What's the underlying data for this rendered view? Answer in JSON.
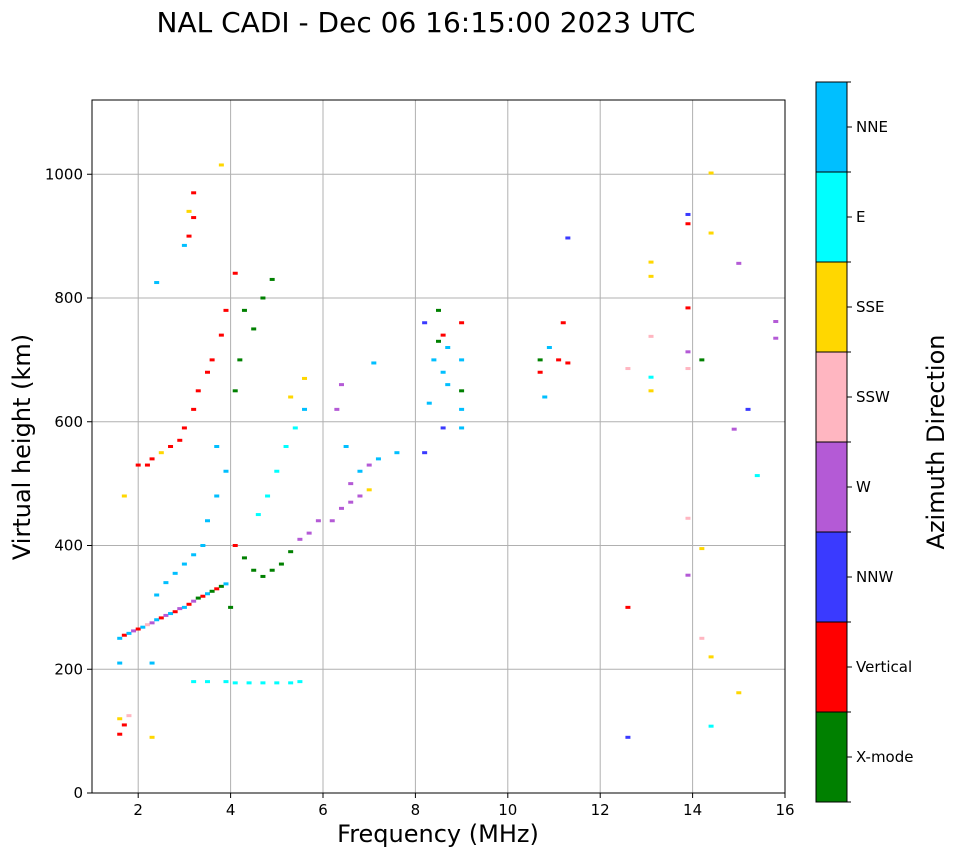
{
  "chart_data": {
    "type": "scatter",
    "title": "NAL CADI - Dec 06 16:15:00 2023 UTC",
    "xlabel": "Frequency (MHz)",
    "ylabel": "Virtual height (km)",
    "xlim": [
      1,
      16
    ],
    "ylim": [
      0,
      1120
    ],
    "xticks": [
      2,
      4,
      6,
      8,
      10,
      12,
      14,
      16
    ],
    "yticks": [
      0,
      200,
      400,
      600,
      800,
      1000
    ],
    "grid": true,
    "colorbar": {
      "label": "Azimuth Direction",
      "categories": [
        {
          "name": "X-mode",
          "color": "#008000"
        },
        {
          "name": "Vertical",
          "color": "#ff0000"
        },
        {
          "name": "NNW",
          "color": "#3a3aff"
        },
        {
          "name": "W",
          "color": "#b45ad6"
        },
        {
          "name": "SSW",
          "color": "#ffb6c1"
        },
        {
          "name": "SSE",
          "color": "#ffd700"
        },
        {
          "name": "E",
          "color": "#00ffff"
        },
        {
          "name": "NNE",
          "color": "#00bfff"
        }
      ]
    },
    "points": [
      [
        1.6,
        250,
        "NNE"
      ],
      [
        1.7,
        255,
        "Vertical"
      ],
      [
        1.8,
        258,
        "NNE"
      ],
      [
        1.9,
        262,
        "W"
      ],
      [
        2.0,
        265,
        "Vertical"
      ],
      [
        2.1,
        268,
        "NNE"
      ],
      [
        2.2,
        272,
        "SSW"
      ],
      [
        2.3,
        275,
        "W"
      ],
      [
        2.4,
        280,
        "NNE"
      ],
      [
        2.5,
        283,
        "Vertical"
      ],
      [
        2.6,
        287,
        "W"
      ],
      [
        2.7,
        290,
        "NNE"
      ],
      [
        2.8,
        293,
        "Vertical"
      ],
      [
        2.9,
        298,
        "W"
      ],
      [
        3.0,
        300,
        "NNE"
      ],
      [
        3.1,
        305,
        "Vertical"
      ],
      [
        3.2,
        310,
        "W"
      ],
      [
        3.3,
        315,
        "X-mode"
      ],
      [
        3.4,
        318,
        "Vertical"
      ],
      [
        3.5,
        322,
        "NNE"
      ],
      [
        3.6,
        326,
        "X-mode"
      ],
      [
        3.7,
        330,
        "Vertical"
      ],
      [
        3.8,
        334,
        "X-mode"
      ],
      [
        3.9,
        338,
        "NNE"
      ],
      [
        4.0,
        300,
        "X-mode"
      ],
      [
        2.4,
        320,
        "NNE"
      ],
      [
        2.6,
        340,
        "NNE"
      ],
      [
        2.8,
        355,
        "NNE"
      ],
      [
        3.0,
        370,
        "NNE"
      ],
      [
        3.2,
        385,
        "NNE"
      ],
      [
        3.4,
        400,
        "NNE"
      ],
      [
        3.5,
        440,
        "NNE"
      ],
      [
        3.7,
        480,
        "NNE"
      ],
      [
        3.7,
        560,
        "NNE"
      ],
      [
        3.9,
        520,
        "NNE"
      ],
      [
        4.1,
        400,
        "Vertical"
      ],
      [
        4.3,
        380,
        "X-mode"
      ],
      [
        4.5,
        360,
        "X-mode"
      ],
      [
        4.7,
        350,
        "X-mode"
      ],
      [
        4.9,
        360,
        "X-mode"
      ],
      [
        5.1,
        370,
        "X-mode"
      ],
      [
        5.3,
        390,
        "X-mode"
      ],
      [
        5.5,
        410,
        "W"
      ],
      [
        5.7,
        420,
        "W"
      ],
      [
        5.9,
        440,
        "W"
      ],
      [
        4.6,
        450,
        "E"
      ],
      [
        4.8,
        480,
        "E"
      ],
      [
        5.0,
        520,
        "E"
      ],
      [
        5.2,
        560,
        "E"
      ],
      [
        5.4,
        590,
        "E"
      ],
      [
        5.6,
        620,
        "NNE"
      ],
      [
        5.3,
        640,
        "SSE"
      ],
      [
        5.6,
        670,
        "SSE"
      ],
      [
        4.3,
        780,
        "X-mode"
      ],
      [
        4.5,
        750,
        "X-mode"
      ],
      [
        4.7,
        800,
        "X-mode"
      ],
      [
        4.9,
        830,
        "X-mode"
      ],
      [
        4.2,
        700,
        "X-mode"
      ],
      [
        4.1,
        650,
        "X-mode"
      ],
      [
        3.0,
        590,
        "Vertical"
      ],
      [
        2.9,
        570,
        "Vertical"
      ],
      [
        2.7,
        560,
        "Vertical"
      ],
      [
        2.5,
        550,
        "SSE"
      ],
      [
        2.3,
        540,
        "Vertical"
      ],
      [
        2.2,
        530,
        "Vertical"
      ],
      [
        3.2,
        620,
        "Vertical"
      ],
      [
        3.3,
        650,
        "Vertical"
      ],
      [
        3.5,
        680,
        "Vertical"
      ],
      [
        3.6,
        700,
        "Vertical"
      ],
      [
        3.8,
        740,
        "Vertical"
      ],
      [
        3.9,
        780,
        "Vertical"
      ],
      [
        4.1,
        840,
        "Vertical"
      ],
      [
        3.1,
        900,
        "Vertical"
      ],
      [
        3.2,
        930,
        "Vertical"
      ],
      [
        3.1,
        940,
        "SSE"
      ],
      [
        3.2,
        970,
        "Vertical"
      ],
      [
        3.8,
        1015,
        "SSE"
      ],
      [
        2.0,
        530,
        "Vertical"
      ],
      [
        1.7,
        480,
        "SSE"
      ],
      [
        6.2,
        440,
        "W"
      ],
      [
        6.4,
        460,
        "W"
      ],
      [
        6.6,
        470,
        "W"
      ],
      [
        6.8,
        480,
        "W"
      ],
      [
        7.0,
        490,
        "SSE"
      ],
      [
        6.6,
        500,
        "W"
      ],
      [
        6.8,
        520,
        "NNE"
      ],
      [
        7.0,
        530,
        "W"
      ],
      [
        6.3,
        620,
        "W"
      ],
      [
        6.4,
        660,
        "W"
      ],
      [
        6.5,
        560,
        "NNE"
      ],
      [
        7.2,
        540,
        "NNE"
      ],
      [
        7.6,
        550,
        "NNE"
      ],
      [
        7.1,
        695,
        "NNE"
      ],
      [
        8.2,
        550,
        "NNW"
      ],
      [
        8.3,
        630,
        "NNE"
      ],
      [
        8.4,
        700,
        "NNE"
      ],
      [
        8.5,
        730,
        "X-mode"
      ],
      [
        8.6,
        740,
        "Vertical"
      ],
      [
        8.7,
        720,
        "NNE"
      ],
      [
        8.6,
        680,
        "NNE"
      ],
      [
        8.7,
        660,
        "NNE"
      ],
      [
        8.6,
        590,
        "NNW"
      ],
      [
        8.2,
        760,
        "NNW"
      ],
      [
        8.5,
        780,
        "X-mode"
      ],
      [
        9.0,
        760,
        "Vertical"
      ],
      [
        9.0,
        700,
        "NNE"
      ],
      [
        9.0,
        650,
        "X-mode"
      ],
      [
        9.0,
        620,
        "NNE"
      ],
      [
        9.0,
        590,
        "NNE"
      ],
      [
        10.7,
        700,
        "X-mode"
      ],
      [
        10.9,
        720,
        "NNE"
      ],
      [
        11.1,
        700,
        "Vertical"
      ],
      [
        11.3,
        695,
        "Vertical"
      ],
      [
        11.2,
        760,
        "Vertical"
      ],
      [
        10.8,
        640,
        "NNE"
      ],
      [
        10.7,
        680,
        "Vertical"
      ],
      [
        11.3,
        897,
        "NNW"
      ],
      [
        12.6,
        300,
        "Vertical"
      ],
      [
        12.6,
        90,
        "NNW"
      ],
      [
        12.6,
        686,
        "SSW"
      ],
      [
        13.1,
        650,
        "SSE"
      ],
      [
        13.1,
        672,
        "E"
      ],
      [
        13.1,
        738,
        "SSW"
      ],
      [
        13.1,
        835,
        "SSE"
      ],
      [
        13.1,
        858,
        "SSE"
      ],
      [
        13.9,
        935,
        "NNW"
      ],
      [
        13.9,
        920,
        "Vertical"
      ],
      [
        13.9,
        784,
        "Vertical"
      ],
      [
        13.9,
        713,
        "W"
      ],
      [
        13.9,
        686,
        "SSW"
      ],
      [
        13.9,
        444,
        "SSW"
      ],
      [
        13.9,
        352,
        "W"
      ],
      [
        14.2,
        700,
        "X-mode"
      ],
      [
        14.2,
        395,
        "SSE"
      ],
      [
        14.2,
        250,
        "SSW"
      ],
      [
        14.4,
        220,
        "SSE"
      ],
      [
        14.4,
        108,
        "E"
      ],
      [
        14.4,
        1002,
        "SSE"
      ],
      [
        14.4,
        905,
        "SSE"
      ],
      [
        15.0,
        856,
        "W"
      ],
      [
        14.9,
        588,
        "W"
      ],
      [
        15.0,
        162,
        "SSE"
      ],
      [
        15.2,
        620,
        "NNW"
      ],
      [
        15.4,
        513,
        "E"
      ],
      [
        15.8,
        735,
        "W"
      ],
      [
        15.8,
        762,
        "W"
      ],
      [
        1.6,
        120,
        "SSE"
      ],
      [
        1.7,
        110,
        "Vertical"
      ],
      [
        1.8,
        125,
        "SSW"
      ],
      [
        1.6,
        95,
        "Vertical"
      ],
      [
        2.3,
        90,
        "SSE"
      ],
      [
        3.2,
        180,
        "E"
      ],
      [
        3.5,
        180,
        "E"
      ],
      [
        3.9,
        180,
        "E"
      ],
      [
        4.1,
        178,
        "E"
      ],
      [
        4.4,
        178,
        "E"
      ],
      [
        4.7,
        178,
        "E"
      ],
      [
        5.0,
        178,
        "E"
      ],
      [
        5.3,
        178,
        "E"
      ],
      [
        5.5,
        180,
        "E"
      ],
      [
        2.4,
        825,
        "NNE"
      ],
      [
        3.0,
        885,
        "NNE"
      ],
      [
        2.3,
        210,
        "NNE"
      ],
      [
        1.6,
        210,
        "NNE"
      ]
    ]
  }
}
